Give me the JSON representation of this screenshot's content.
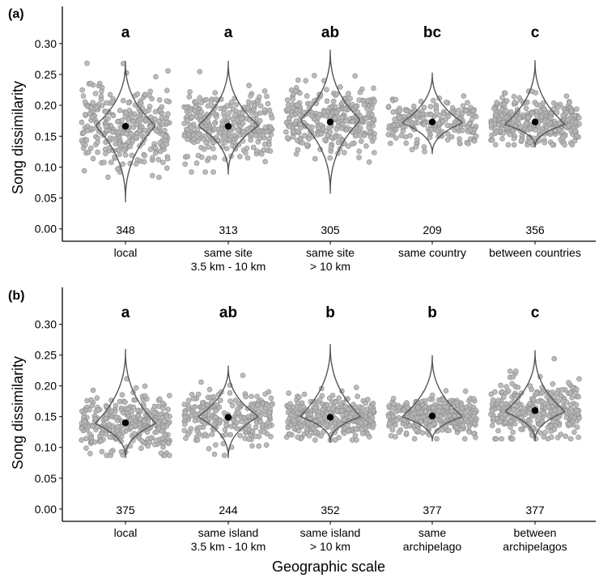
{
  "figure": {
    "ylabel": "Song dissimilarity",
    "xlabel": "Geographic scale"
  },
  "chart_data": [
    {
      "type": "violin",
      "panel_label": "(a)",
      "ylabel": "Song dissimilarity",
      "ylim": [
        -0.02,
        0.36
      ],
      "yticks": [
        "0.00",
        "0.05",
        "0.10",
        "0.15",
        "0.20",
        "0.25",
        "0.30"
      ],
      "categories": [
        {
          "label_lines": [
            "local"
          ],
          "group": "a",
          "n": "348",
          "mean": 0.166,
          "min": 0.043,
          "max": 0.272,
          "widest_at": 0.167,
          "half_width": 0.59,
          "spread_sd": 0.034
        },
        {
          "label_lines": [
            "same site",
            "3.5 km - 10 km"
          ],
          "group": "a",
          "n": "313",
          "mean": 0.166,
          "min": 0.088,
          "max": 0.272,
          "widest_at": 0.167,
          "half_width": 0.59,
          "spread_sd": 0.027
        },
        {
          "label_lines": [
            "same site",
            "> 10 km"
          ],
          "group": "ab",
          "n": "305",
          "mean": 0.173,
          "min": 0.057,
          "max": 0.29,
          "widest_at": 0.176,
          "half_width": 0.59,
          "spread_sd": 0.028
        },
        {
          "label_lines": [
            "same country"
          ],
          "group": "bc",
          "n": "209",
          "mean": 0.173,
          "min": 0.121,
          "max": 0.253,
          "widest_at": 0.172,
          "half_width": 0.59,
          "spread_sd": 0.018
        },
        {
          "label_lines": [
            "between countries"
          ],
          "group": "c",
          "n": "356",
          "mean": 0.173,
          "min": 0.132,
          "max": 0.273,
          "widest_at": 0.169,
          "half_width": 0.59,
          "spread_sd": 0.019
        }
      ]
    },
    {
      "type": "violin",
      "panel_label": "(b)",
      "ylabel": "Song dissimilarity",
      "xlabel": "Geographic scale",
      "ylim": [
        -0.02,
        0.36
      ],
      "yticks": [
        "0.00",
        "0.05",
        "0.10",
        "0.15",
        "0.20",
        "0.25",
        "0.30"
      ],
      "categories": [
        {
          "label_lines": [
            "local"
          ],
          "group": "a",
          "n": "375",
          "mean": 0.14,
          "min": 0.083,
          "max": 0.26,
          "widest_at": 0.139,
          "half_width": 0.59,
          "spread_sd": 0.022
        },
        {
          "label_lines": [
            "same island",
            "3.5 km - 10 km"
          ],
          "group": "ab",
          "n": "244",
          "mean": 0.149,
          "min": 0.083,
          "max": 0.233,
          "widest_at": 0.15,
          "half_width": 0.59,
          "spread_sd": 0.02
        },
        {
          "label_lines": [
            "same island",
            "> 10 km"
          ],
          "group": "b",
          "n": "352",
          "mean": 0.149,
          "min": 0.108,
          "max": 0.268,
          "widest_at": 0.15,
          "half_width": 0.59,
          "spread_sd": 0.017
        },
        {
          "label_lines": [
            "same",
            "archipelago"
          ],
          "group": "b",
          "n": "377",
          "mean": 0.151,
          "min": 0.11,
          "max": 0.25,
          "widest_at": 0.15,
          "half_width": 0.59,
          "spread_sd": 0.016
        },
        {
          "label_lines": [
            "between",
            "archipelagos"
          ],
          "group": "c",
          "n": "377",
          "mean": 0.16,
          "min": 0.11,
          "max": 0.258,
          "widest_at": 0.158,
          "half_width": 0.59,
          "spread_sd": 0.022
        }
      ]
    }
  ],
  "colors": {
    "point_fill": "#b5b5b5",
    "point_stroke": "#8a8a8a",
    "violin_stroke": "#555555",
    "mean_dot": "#000000",
    "axis": "#000000",
    "text": "#000000"
  }
}
